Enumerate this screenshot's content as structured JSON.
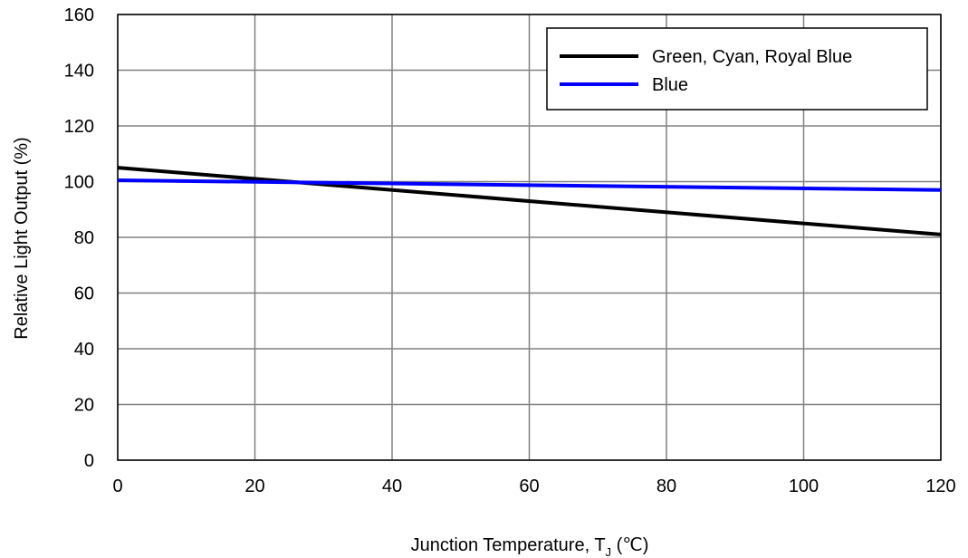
{
  "chart_data": {
    "type": "line",
    "xlabel": "Junction Temperature, T",
    "xlabel_subscript": "J",
    "xlabel_unit": " (℃)",
    "ylabel": "Relative Light Output (%)",
    "xlim": [
      0,
      120
    ],
    "ylim": [
      0,
      160
    ],
    "xticks": [
      0,
      20,
      40,
      60,
      80,
      100,
      120
    ],
    "yticks": [
      0,
      20,
      40,
      60,
      80,
      100,
      120,
      140,
      160
    ],
    "grid": true,
    "legend_position": "top-right",
    "series": [
      {
        "name": "Green, Cyan, Royal Blue",
        "color": "#000000",
        "x": [
          0,
          120
        ],
        "y": [
          105,
          81
        ]
      },
      {
        "name": "Blue",
        "color": "#0000ff",
        "x": [
          0,
          120
        ],
        "y": [
          100.5,
          97
        ]
      }
    ]
  }
}
